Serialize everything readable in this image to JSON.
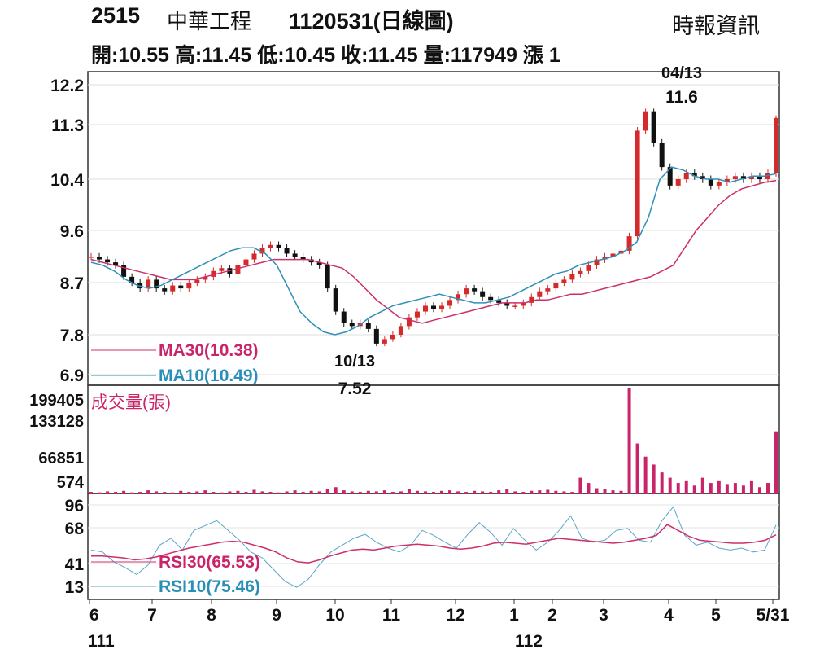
{
  "header": {
    "code": "2515",
    "name": "中華工程",
    "date_period": "1120531(日線圖)",
    "source": "時報資訊",
    "ohlc_line": "開:10.55 高:11.45 低:10.45 收:11.45 量:117949 漲 1"
  },
  "chart_data": {
    "type": "candlestick",
    "price_panel": {
      "y_ticks": [
        "12.2",
        "11.3",
        "10.4",
        "9.6",
        "8.7",
        "7.8",
        "6.9"
      ],
      "ylim": [
        6.9,
        12.2
      ],
      "legend": [
        "MA30(10.38)",
        "MA10(10.49)"
      ],
      "annotations": [
        {
          "date": "04/13",
          "value": "11.6"
        },
        {
          "date": "10/13",
          "value": "7.52"
        }
      ],
      "close_series": [
        9.15,
        9.1,
        9.05,
        9.0,
        8.8,
        8.7,
        8.6,
        8.75,
        8.6,
        8.55,
        8.65,
        8.6,
        8.7,
        8.75,
        8.8,
        8.9,
        8.95,
        8.85,
        9.0,
        9.1,
        9.2,
        9.3,
        9.35,
        9.3,
        9.2,
        9.15,
        9.1,
        9.05,
        9.0,
        8.6,
        8.2,
        8.0,
        7.95,
        8.0,
        7.9,
        7.6,
        7.7,
        7.8,
        7.95,
        8.1,
        8.2,
        8.3,
        8.25,
        8.3,
        8.4,
        8.5,
        8.6,
        8.55,
        8.45,
        8.4,
        8.35,
        8.3,
        8.3,
        8.35,
        8.45,
        8.55,
        8.6,
        8.7,
        8.75,
        8.85,
        8.9,
        9.0,
        9.1,
        9.15,
        9.2,
        9.25,
        9.5,
        11.2,
        11.6,
        11.0,
        10.6,
        10.3,
        10.4,
        10.5,
        10.45,
        10.4,
        10.3,
        10.35,
        10.4,
        10.45,
        10.4,
        10.45,
        10.4,
        10.5,
        11.45
      ],
      "ma30_series": [
        9.1,
        9.05,
        9.0,
        8.95,
        8.9,
        8.85,
        8.8,
        8.75,
        8.75,
        8.75,
        8.8,
        8.85,
        8.9,
        8.95,
        9.0,
        9.05,
        9.1,
        9.1,
        9.1,
        9.1,
        9.05,
        9.0,
        8.95,
        8.8,
        8.6,
        8.4,
        8.25,
        8.1,
        8.05,
        8.0,
        8.05,
        8.1,
        8.15,
        8.2,
        8.25,
        8.3,
        8.35,
        8.35,
        8.35,
        8.4,
        8.4,
        8.45,
        8.5,
        8.5,
        8.55,
        8.6,
        8.65,
        8.7,
        8.75,
        8.8,
        8.9,
        9.0,
        9.3,
        9.6,
        9.8,
        10.0,
        10.15,
        10.25,
        10.3,
        10.35,
        10.38
      ],
      "ma10_series": [
        9.05,
        9.0,
        8.9,
        8.75,
        8.65,
        8.6,
        8.65,
        8.75,
        8.85,
        8.95,
        9.05,
        9.15,
        9.25,
        9.3,
        9.3,
        9.2,
        9.0,
        8.6,
        8.2,
        8.0,
        7.85,
        7.8,
        7.85,
        7.95,
        8.1,
        8.2,
        8.3,
        8.35,
        8.4,
        8.45,
        8.5,
        8.45,
        8.4,
        8.35,
        8.35,
        8.4,
        8.45,
        8.55,
        8.65,
        8.75,
        8.85,
        8.9,
        9.0,
        9.05,
        9.1,
        9.15,
        9.25,
        9.4,
        9.8,
        10.4,
        10.6,
        10.55,
        10.45,
        10.4,
        10.4,
        10.35,
        10.4,
        10.45,
        10.45,
        10.49
      ]
    },
    "volume_panel": {
      "label": "成交量(張)",
      "y_ticks": [
        "199405",
        "133128",
        "66851",
        "574"
      ],
      "ylim": [
        574,
        199405
      ],
      "values": [
        3000,
        2000,
        4000,
        3000,
        5000,
        2000,
        3000,
        6000,
        4000,
        3000,
        2000,
        5000,
        3000,
        4000,
        6000,
        3000,
        2000,
        4000,
        5000,
        3000,
        7000,
        4000,
        3000,
        2000,
        4000,
        6000,
        3000,
        5000,
        4000,
        8000,
        12000,
        6000,
        4000,
        3000,
        5000,
        4000,
        6000,
        3000,
        4000,
        8000,
        5000,
        4000,
        3000,
        5000,
        6000,
        4000,
        3000,
        5000,
        4000,
        3000,
        6000,
        8000,
        4000,
        3000,
        5000,
        6000,
        7000,
        5000,
        4000,
        3000,
        30000,
        20000,
        10000,
        8000,
        6000,
        5000,
        199405,
        95000,
        70000,
        55000,
        40000,
        30000,
        20000,
        25000,
        15000,
        30000,
        20000,
        25000,
        18000,
        20000,
        15000,
        25000,
        12000,
        20000,
        117949
      ]
    },
    "rsi_panel": {
      "y_ticks": [
        "96",
        "68",
        "41",
        "13"
      ],
      "ylim": [
        13,
        96
      ],
      "legend": [
        "RSI30(65.53)",
        "RSI10(75.46)"
      ],
      "rsi30_series": [
        44,
        44,
        43,
        42,
        40,
        41,
        43,
        46,
        49,
        52,
        54,
        56,
        58,
        59,
        58,
        55,
        52,
        48,
        42,
        38,
        37,
        40,
        44,
        47,
        50,
        51,
        50,
        52,
        54,
        55,
        56,
        55,
        54,
        52,
        51,
        52,
        54,
        57,
        58,
        57,
        56,
        58,
        60,
        62,
        61,
        60,
        59,
        58,
        57,
        58,
        60,
        62,
        65,
        76,
        70,
        64,
        60,
        59,
        58,
        57,
        57,
        58,
        60,
        65.53
      ],
      "rsi10_series": [
        50,
        48,
        38,
        32,
        25,
        35,
        55,
        62,
        50,
        70,
        75,
        80,
        70,
        60,
        48,
        42,
        30,
        18,
        12,
        20,
        35,
        48,
        55,
        62,
        66,
        58,
        52,
        48,
        55,
        70,
        65,
        58,
        52,
        66,
        78,
        68,
        55,
        72,
        60,
        50,
        58,
        70,
        85,
        62,
        58,
        60,
        70,
        72,
        60,
        58,
        80,
        94,
        65,
        55,
        58,
        52,
        50,
        52,
        48,
        50,
        75.46
      ]
    },
    "x_ticks": [
      "6",
      "7",
      "8",
      "9",
      "10",
      "11",
      "12",
      "1",
      "2",
      "3",
      "4",
      "5",
      "5/31"
    ],
    "year_labels": [
      "111",
      "112"
    ]
  }
}
